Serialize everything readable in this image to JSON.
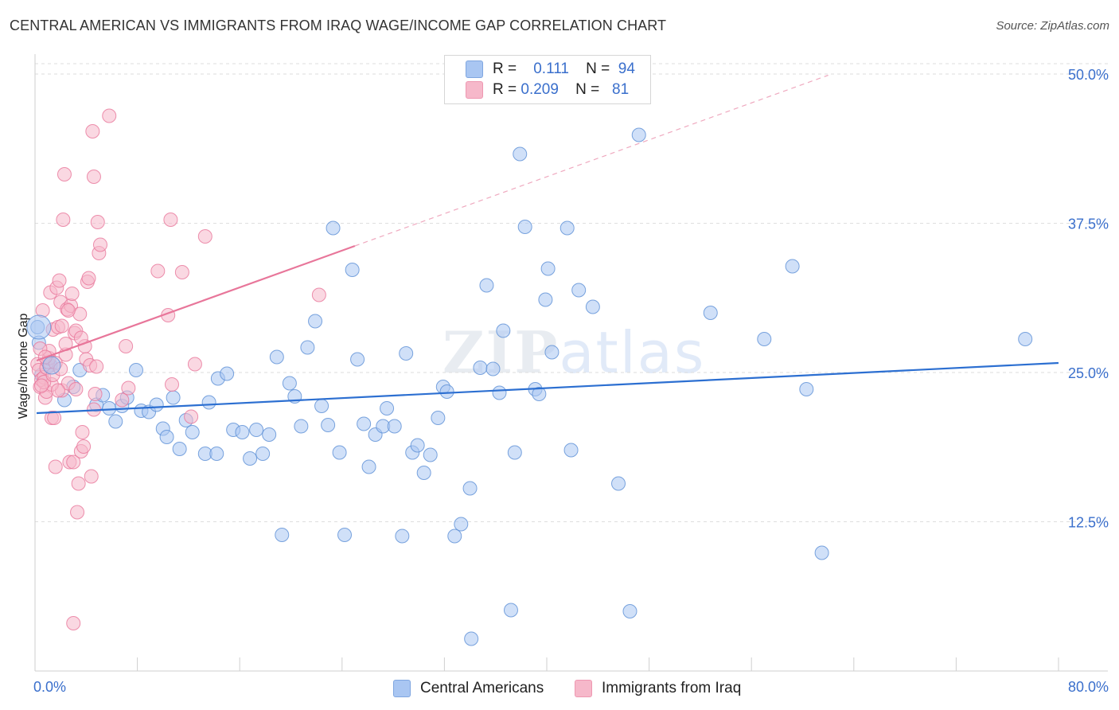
{
  "title": "CENTRAL AMERICAN VS IMMIGRANTS FROM IRAQ WAGE/INCOME GAP CORRELATION CHART",
  "source": "Source: ZipAtlas.com",
  "watermark": {
    "bold": "ZIP",
    "light": "atlas"
  },
  "legend": {
    "rows": [
      {
        "r_label": "R =",
        "r_value": "0.111",
        "n_label": "N =",
        "n_value": "94",
        "color": "#a9c6f2"
      },
      {
        "r_label": "R =",
        "r_value": "0.209",
        "n_label": "N =",
        "n_value": "81",
        "color": "#f6b8ca"
      }
    ]
  },
  "chart_data": {
    "type": "scatter",
    "title": "CENTRAL AMERICAN VS IMMIGRANTS FROM IRAQ WAGE/INCOME GAP CORRELATION CHART",
    "xlabel": "",
    "ylabel": "Wage/Income Gap",
    "xlim": [
      0,
      80
    ],
    "ylim": [
      0,
      50
    ],
    "x_tick_labels": [
      "0.0%",
      "80.0%"
    ],
    "y_ticks": [
      12.5,
      25.0,
      37.5,
      50.0
    ],
    "y_tick_labels": [
      "12.5%",
      "25.0%",
      "37.5%",
      "50.0%"
    ],
    "grid": true,
    "series": [
      {
        "name": "Central Americans",
        "color": "#5b8fd6",
        "fill": "#a9c6f2",
        "trend": {
          "x": [
            0,
            80
          ],
          "y": [
            21.6,
            25.8
          ]
        },
        "points": [
          [
            0.2,
            28.8
          ],
          [
            0.3,
            27.5
          ],
          [
            0.5,
            24.8
          ],
          [
            1.2,
            25.6
          ],
          [
            2.3,
            22.7
          ],
          [
            3.0,
            23.8
          ],
          [
            3.5,
            25.2
          ],
          [
            4.8,
            22.3
          ],
          [
            5.3,
            23.1
          ],
          [
            5.8,
            22.0
          ],
          [
            6.3,
            20.9
          ],
          [
            6.8,
            22.2
          ],
          [
            7.2,
            22.9
          ],
          [
            7.9,
            25.2
          ],
          [
            8.3,
            21.8
          ],
          [
            8.9,
            21.7
          ],
          [
            9.5,
            22.3
          ],
          [
            10.0,
            20.3
          ],
          [
            10.3,
            19.6
          ],
          [
            10.8,
            22.9
          ],
          [
            11.3,
            18.6
          ],
          [
            11.8,
            21.0
          ],
          [
            12.3,
            20.0
          ],
          [
            13.3,
            18.2
          ],
          [
            13.6,
            22.5
          ],
          [
            14.3,
            24.5
          ],
          [
            15.0,
            24.9
          ],
          [
            15.5,
            20.2
          ],
          [
            16.2,
            20.0
          ],
          [
            16.8,
            17.8
          ],
          [
            17.3,
            20.2
          ],
          [
            17.8,
            18.2
          ],
          [
            18.3,
            19.8
          ],
          [
            18.9,
            26.3
          ],
          [
            19.3,
            11.4
          ],
          [
            19.9,
            24.1
          ],
          [
            20.3,
            23.0
          ],
          [
            20.8,
            20.5
          ],
          [
            21.3,
            27.1
          ],
          [
            21.9,
            29.3
          ],
          [
            22.4,
            22.2
          ],
          [
            22.9,
            20.6
          ],
          [
            23.3,
            37.1
          ],
          [
            23.8,
            18.3
          ],
          [
            24.2,
            11.4
          ],
          [
            24.8,
            33.6
          ],
          [
            25.2,
            26.1
          ],
          [
            25.7,
            20.7
          ],
          [
            26.1,
            17.1
          ],
          [
            26.6,
            19.8
          ],
          [
            27.2,
            20.5
          ],
          [
            27.5,
            22.0
          ],
          [
            28.1,
            20.5
          ],
          [
            28.7,
            11.3
          ],
          [
            29.0,
            26.6
          ],
          [
            29.5,
            18.3
          ],
          [
            29.9,
            18.9
          ],
          [
            30.4,
            16.6
          ],
          [
            30.9,
            18.1
          ],
          [
            31.5,
            21.2
          ],
          [
            31.9,
            23.8
          ],
          [
            32.2,
            23.4
          ],
          [
            32.8,
            11.3
          ],
          [
            33.3,
            12.3
          ],
          [
            34.0,
            15.3
          ],
          [
            34.8,
            25.4
          ],
          [
            35.3,
            32.3
          ],
          [
            35.8,
            25.3
          ],
          [
            36.3,
            23.3
          ],
          [
            36.6,
            28.5
          ],
          [
            37.2,
            5.1
          ],
          [
            37.5,
            18.3
          ],
          [
            37.9,
            43.3
          ],
          [
            38.3,
            37.2
          ],
          [
            39.1,
            23.6
          ],
          [
            39.4,
            23.2
          ],
          [
            39.9,
            31.1
          ],
          [
            40.1,
            33.7
          ],
          [
            40.4,
            26.7
          ],
          [
            41.6,
            37.1
          ],
          [
            41.9,
            18.5
          ],
          [
            42.5,
            31.9
          ],
          [
            43.6,
            30.5
          ],
          [
            45.6,
            15.7
          ],
          [
            46.5,
            5.0
          ],
          [
            47.2,
            44.9
          ],
          [
            52.8,
            30.0
          ],
          [
            57.0,
            27.8
          ],
          [
            59.2,
            33.9
          ],
          [
            60.3,
            23.6
          ],
          [
            61.5,
            9.9
          ],
          [
            77.4,
            27.8
          ],
          [
            34.1,
            2.7
          ],
          [
            14.2,
            18.2
          ]
        ]
      },
      {
        "name": "Immigrants from Iraq",
        "color": "#e8769a",
        "fill": "#f6b8ca",
        "trend": {
          "x": [
            0,
            25
          ],
          "y": [
            26.0,
            35.6
          ]
        },
        "trend_extension": {
          "x": [
            25,
            62
          ],
          "y": [
            35.6,
            49.9
          ]
        },
        "points": [
          [
            0.2,
            25.7
          ],
          [
            0.3,
            25.2
          ],
          [
            0.4,
            23.8
          ],
          [
            0.5,
            24.4
          ],
          [
            0.6,
            30.2
          ],
          [
            0.7,
            24.6
          ],
          [
            0.8,
            22.9
          ],
          [
            0.9,
            25.4
          ],
          [
            1.0,
            25.9
          ],
          [
            1.1,
            26.2
          ],
          [
            1.2,
            31.7
          ],
          [
            1.3,
            21.2
          ],
          [
            1.4,
            28.6
          ],
          [
            1.5,
            21.2
          ],
          [
            1.6,
            17.1
          ],
          [
            1.7,
            32.1
          ],
          [
            1.8,
            28.8
          ],
          [
            1.9,
            32.7
          ],
          [
            2.0,
            30.9
          ],
          [
            2.1,
            23.5
          ],
          [
            2.2,
            37.8
          ],
          [
            2.3,
            41.6
          ],
          [
            2.4,
            26.5
          ],
          [
            2.5,
            30.3
          ],
          [
            2.6,
            24.1
          ],
          [
            2.7,
            17.5
          ],
          [
            2.8,
            30.6
          ],
          [
            2.9,
            31.6
          ],
          [
            3.0,
            17.5
          ],
          [
            3.1,
            28.3
          ],
          [
            3.2,
            23.6
          ],
          [
            3.3,
            13.3
          ],
          [
            3.4,
            15.7
          ],
          [
            3.5,
            29.9
          ],
          [
            3.6,
            18.4
          ],
          [
            3.7,
            20.0
          ],
          [
            3.8,
            18.8
          ],
          [
            3.9,
            27.2
          ],
          [
            4.0,
            26.1
          ],
          [
            4.1,
            32.6
          ],
          [
            4.2,
            32.9
          ],
          [
            4.3,
            25.6
          ],
          [
            4.4,
            16.3
          ],
          [
            4.5,
            45.2
          ],
          [
            4.6,
            41.4
          ],
          [
            4.7,
            23.2
          ],
          [
            4.8,
            25.5
          ],
          [
            4.9,
            37.6
          ],
          [
            5.0,
            35.0
          ],
          [
            5.1,
            35.7
          ],
          [
            5.8,
            46.5
          ],
          [
            6.8,
            22.7
          ],
          [
            7.1,
            27.2
          ],
          [
            7.3,
            23.7
          ],
          [
            9.6,
            33.5
          ],
          [
            10.4,
            29.8
          ],
          [
            10.6,
            37.8
          ],
          [
            10.7,
            24.0
          ],
          [
            11.5,
            33.4
          ],
          [
            12.2,
            21.3
          ],
          [
            12.5,
            25.7
          ],
          [
            13.3,
            36.4
          ],
          [
            22.2,
            31.5
          ],
          [
            3.0,
            4.0
          ],
          [
            0.9,
            23.4
          ],
          [
            1.1,
            26.8
          ],
          [
            1.3,
            24.0
          ],
          [
            1.6,
            25.8
          ],
          [
            2.1,
            28.9
          ],
          [
            2.4,
            27.4
          ],
          [
            0.4,
            27.0
          ],
          [
            0.7,
            24.2
          ],
          [
            1.8,
            23.5
          ],
          [
            2.6,
            30.2
          ],
          [
            3.2,
            28.5
          ],
          [
            0.5,
            23.9
          ],
          [
            0.8,
            26.3
          ],
          [
            1.4,
            24.8
          ],
          [
            2.0,
            25.3
          ],
          [
            3.6,
            27.9
          ],
          [
            4.6,
            21.9
          ]
        ]
      }
    ]
  },
  "axes": {
    "ylabel": "Wage/Income Gap",
    "x_left": "0.0%",
    "x_right": "80.0%",
    "y_labels": [
      "12.5%",
      "25.0%",
      "37.5%",
      "50.0%"
    ]
  },
  "bottom_legend": [
    {
      "label": "Central Americans",
      "color": "#a9c6f2"
    },
    {
      "label": "Immigrants from Iraq",
      "color": "#f6b8ca"
    }
  ]
}
